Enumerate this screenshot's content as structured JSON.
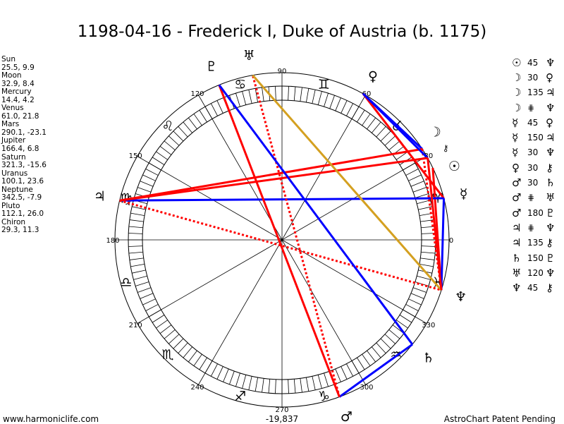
{
  "title": "1198-04-16 - Frederick I, Duke of Austria (b. 1175)",
  "planets": [
    {
      "name": "Sun",
      "glyph": "☉",
      "value": "25.5, 9.9",
      "lon": 25.5
    },
    {
      "name": "Moon",
      "glyph": "☽",
      "value": "32.9, 8.4",
      "lon": 32.9
    },
    {
      "name": "Mercury",
      "glyph": "☿",
      "value": "14.4, 4.2",
      "lon": 14.4
    },
    {
      "name": "Venus",
      "glyph": "♀",
      "value": "61.0, 21.8",
      "lon": 61.0
    },
    {
      "name": "Mars",
      "glyph": "♂",
      "value": "290.1, -23.1",
      "lon": 290.1
    },
    {
      "name": "Jupiter",
      "glyph": "♃",
      "value": "166.4, 6.8",
      "lon": 166.4
    },
    {
      "name": "Saturn",
      "glyph": "♄",
      "value": "321.3, -15.6",
      "lon": 321.3
    },
    {
      "name": "Uranus",
      "glyph": "♅",
      "value": "100.1, 23.6",
      "lon": 100.1
    },
    {
      "name": "Neptune",
      "glyph": "♆",
      "value": "342.5, -7.9",
      "lon": 342.5
    },
    {
      "name": "Pluto",
      "glyph": "♇",
      "value": "112.1, 26.0",
      "lon": 112.1
    },
    {
      "name": "Chiron",
      "glyph": "⚷",
      "value": "29.3, 11.3",
      "lon": 29.3
    }
  ],
  "aspects": [
    {
      "p1": "Sun",
      "a": "45",
      "p2": "Neptune"
    },
    {
      "p1": "Moon",
      "a": "30",
      "p2": "Venus"
    },
    {
      "p1": "Moon",
      "a": "135",
      "p2": "Jupiter"
    },
    {
      "p1": "Moon",
      "a": "⋕",
      "p2": "Neptune"
    },
    {
      "p1": "Mercury",
      "a": "45",
      "p2": "Venus"
    },
    {
      "p1": "Mercury",
      "a": "150",
      "p2": "Jupiter"
    },
    {
      "p1": "Mercury",
      "a": "30",
      "p2": "Neptune"
    },
    {
      "p1": "Venus",
      "a": "30",
      "p2": "Chiron"
    },
    {
      "p1": "Mars",
      "a": "30",
      "p2": "Saturn"
    },
    {
      "p1": "Mars",
      "a": "⋕",
      "p2": "Uranus"
    },
    {
      "p1": "Mars",
      "a": "180",
      "p2": "Pluto"
    },
    {
      "p1": "Jupiter",
      "a": "⋕",
      "p2": "Neptune"
    },
    {
      "p1": "Jupiter",
      "a": "135",
      "p2": "Chiron"
    },
    {
      "p1": "Saturn",
      "a": "150",
      "p2": "Pluto"
    },
    {
      "p1": "Uranus",
      "a": "120",
      "p2": "Neptune"
    },
    {
      "p1": "Neptune",
      "a": "45",
      "p2": "Chiron"
    }
  ],
  "aspect_colors": {
    "30": "#0000ff",
    "150": "#0000ff",
    "45": "#ff0000",
    "135": "#ff0000",
    "180": "#ff0000",
    "120": "#d4a020",
    "⋕": "#ff0000"
  },
  "signs": [
    "♈",
    "♉",
    "♊",
    "♋",
    "♌",
    "♍",
    "♎",
    "♏",
    "♐",
    "♑",
    "♒",
    "♓"
  ],
  "degree_labels": [
    "0",
    "30",
    "60",
    "90",
    "120",
    "150",
    "180",
    "210",
    "240",
    "270",
    "300",
    "330"
  ],
  "footer": {
    "site": "www.harmoniclife.com",
    "day": "-19,837",
    "patent": "AstroChart Patent Pending"
  }
}
